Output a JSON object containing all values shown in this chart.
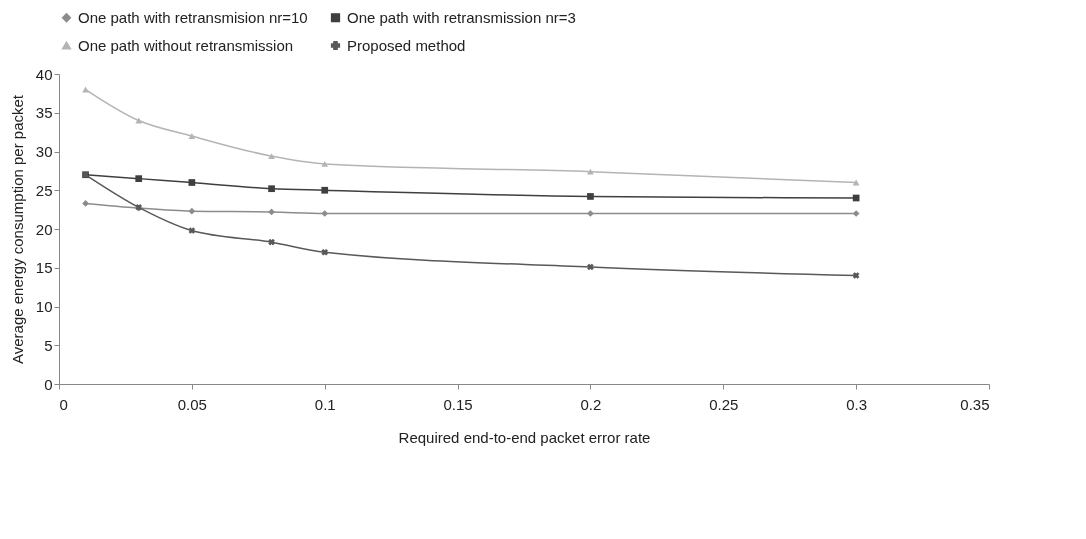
{
  "chart_data": {
    "type": "line",
    "xlabel": "Required end-to-end packet error rate",
    "ylabel": "Average energy consumption per packet",
    "x": [
      0.01,
      0.03,
      0.05,
      0.08,
      0.1,
      0.2,
      0.3
    ],
    "series": [
      {
        "name": "One path with retransmision nr=10",
        "color": "#8c8c8c",
        "marker": "diamond",
        "values": [
          23.3,
          22.7,
          22.3,
          22.2,
          22,
          22,
          22
        ]
      },
      {
        "name": "One path with retransmission nr=3",
        "color": "#3f3f3f",
        "marker": "square",
        "values": [
          27,
          26.5,
          26,
          25.2,
          25,
          24.2,
          24
        ]
      },
      {
        "name": "One path without  retransmission",
        "color": "#b4b4b4",
        "marker": "triangle",
        "values": [
          38,
          34,
          32,
          29.4,
          28.4,
          27.4,
          26
        ]
      },
      {
        "name": "Proposed method",
        "color": "#595959",
        "marker": "cross",
        "values": [
          27,
          22.8,
          19.8,
          18.3,
          17,
          15.1,
          14
        ]
      }
    ],
    "xlim": [
      0,
      0.35
    ],
    "xticks": [
      0,
      0.05,
      0.1,
      0.15,
      0.2,
      0.25,
      0.3,
      0.35
    ],
    "ylim": [
      0,
      40
    ],
    "yticks": [
      0,
      5,
      10,
      15,
      20,
      25,
      30,
      35,
      40
    ],
    "grid": false,
    "legend": "top",
    "line_style": "solid"
  }
}
